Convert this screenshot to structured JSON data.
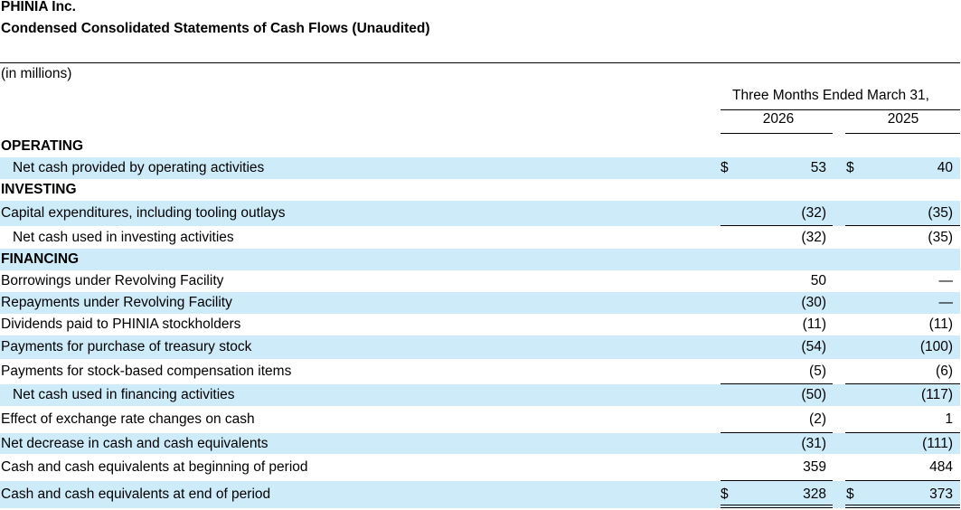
{
  "header": {
    "company": "PHINIA Inc.",
    "statement": "Condensed Consolidated Statements of Cash Flows (Unaudited)",
    "units": "(in millions)",
    "period": "Three Months Ended March 31,",
    "year1": "2026",
    "year2": "2025"
  },
  "rows": [
    {
      "label": "OPERATING",
      "bold": true
    },
    {
      "label": "Net cash provided by operating activities",
      "indent": true,
      "cur1": "$",
      "v1": "53",
      "cur2": "$",
      "v2": "40"
    },
    {
      "label": "INVESTING",
      "bold": true
    },
    {
      "label": "Capital expenditures, including tooling outlays",
      "v1": "(32)",
      "v2": "(35)"
    },
    {
      "label": "Net cash used in investing activities",
      "indent": true,
      "v1": "(32)",
      "v2": "(35)"
    },
    {
      "label": "FINANCING",
      "bold": true
    },
    {
      "label": "Borrowings under Revolving Facility",
      "v1": "50",
      "v2": "—"
    },
    {
      "label": "Repayments under Revolving Facility",
      "v1": "(30)",
      "v2": "—"
    },
    {
      "label": "Dividends paid to PHINIA stockholders",
      "v1": "(11)",
      "v2": "(11)"
    },
    {
      "label": "Payments for purchase of treasury stock",
      "v1": "(54)",
      "v2": "(100)"
    },
    {
      "label": "Payments for stock-based compensation items",
      "v1": "(5)",
      "v2": "(6)"
    },
    {
      "label": "Net cash used in financing activities",
      "indent": true,
      "v1": "(50)",
      "v2": "(117)"
    },
    {
      "label": "Effect of exchange rate changes on cash",
      "v1": "(2)",
      "v2": "1"
    },
    {
      "label": "Net decrease in cash and cash equivalents",
      "v1": "(31)",
      "v2": "(111)"
    },
    {
      "label": "Cash and cash equivalents at beginning of period",
      "v1": "359",
      "v2": "484"
    },
    {
      "label": "Cash and cash equivalents at end of period",
      "cur1": "$",
      "v1": "328",
      "cur2": "$",
      "v2": "373"
    }
  ]
}
